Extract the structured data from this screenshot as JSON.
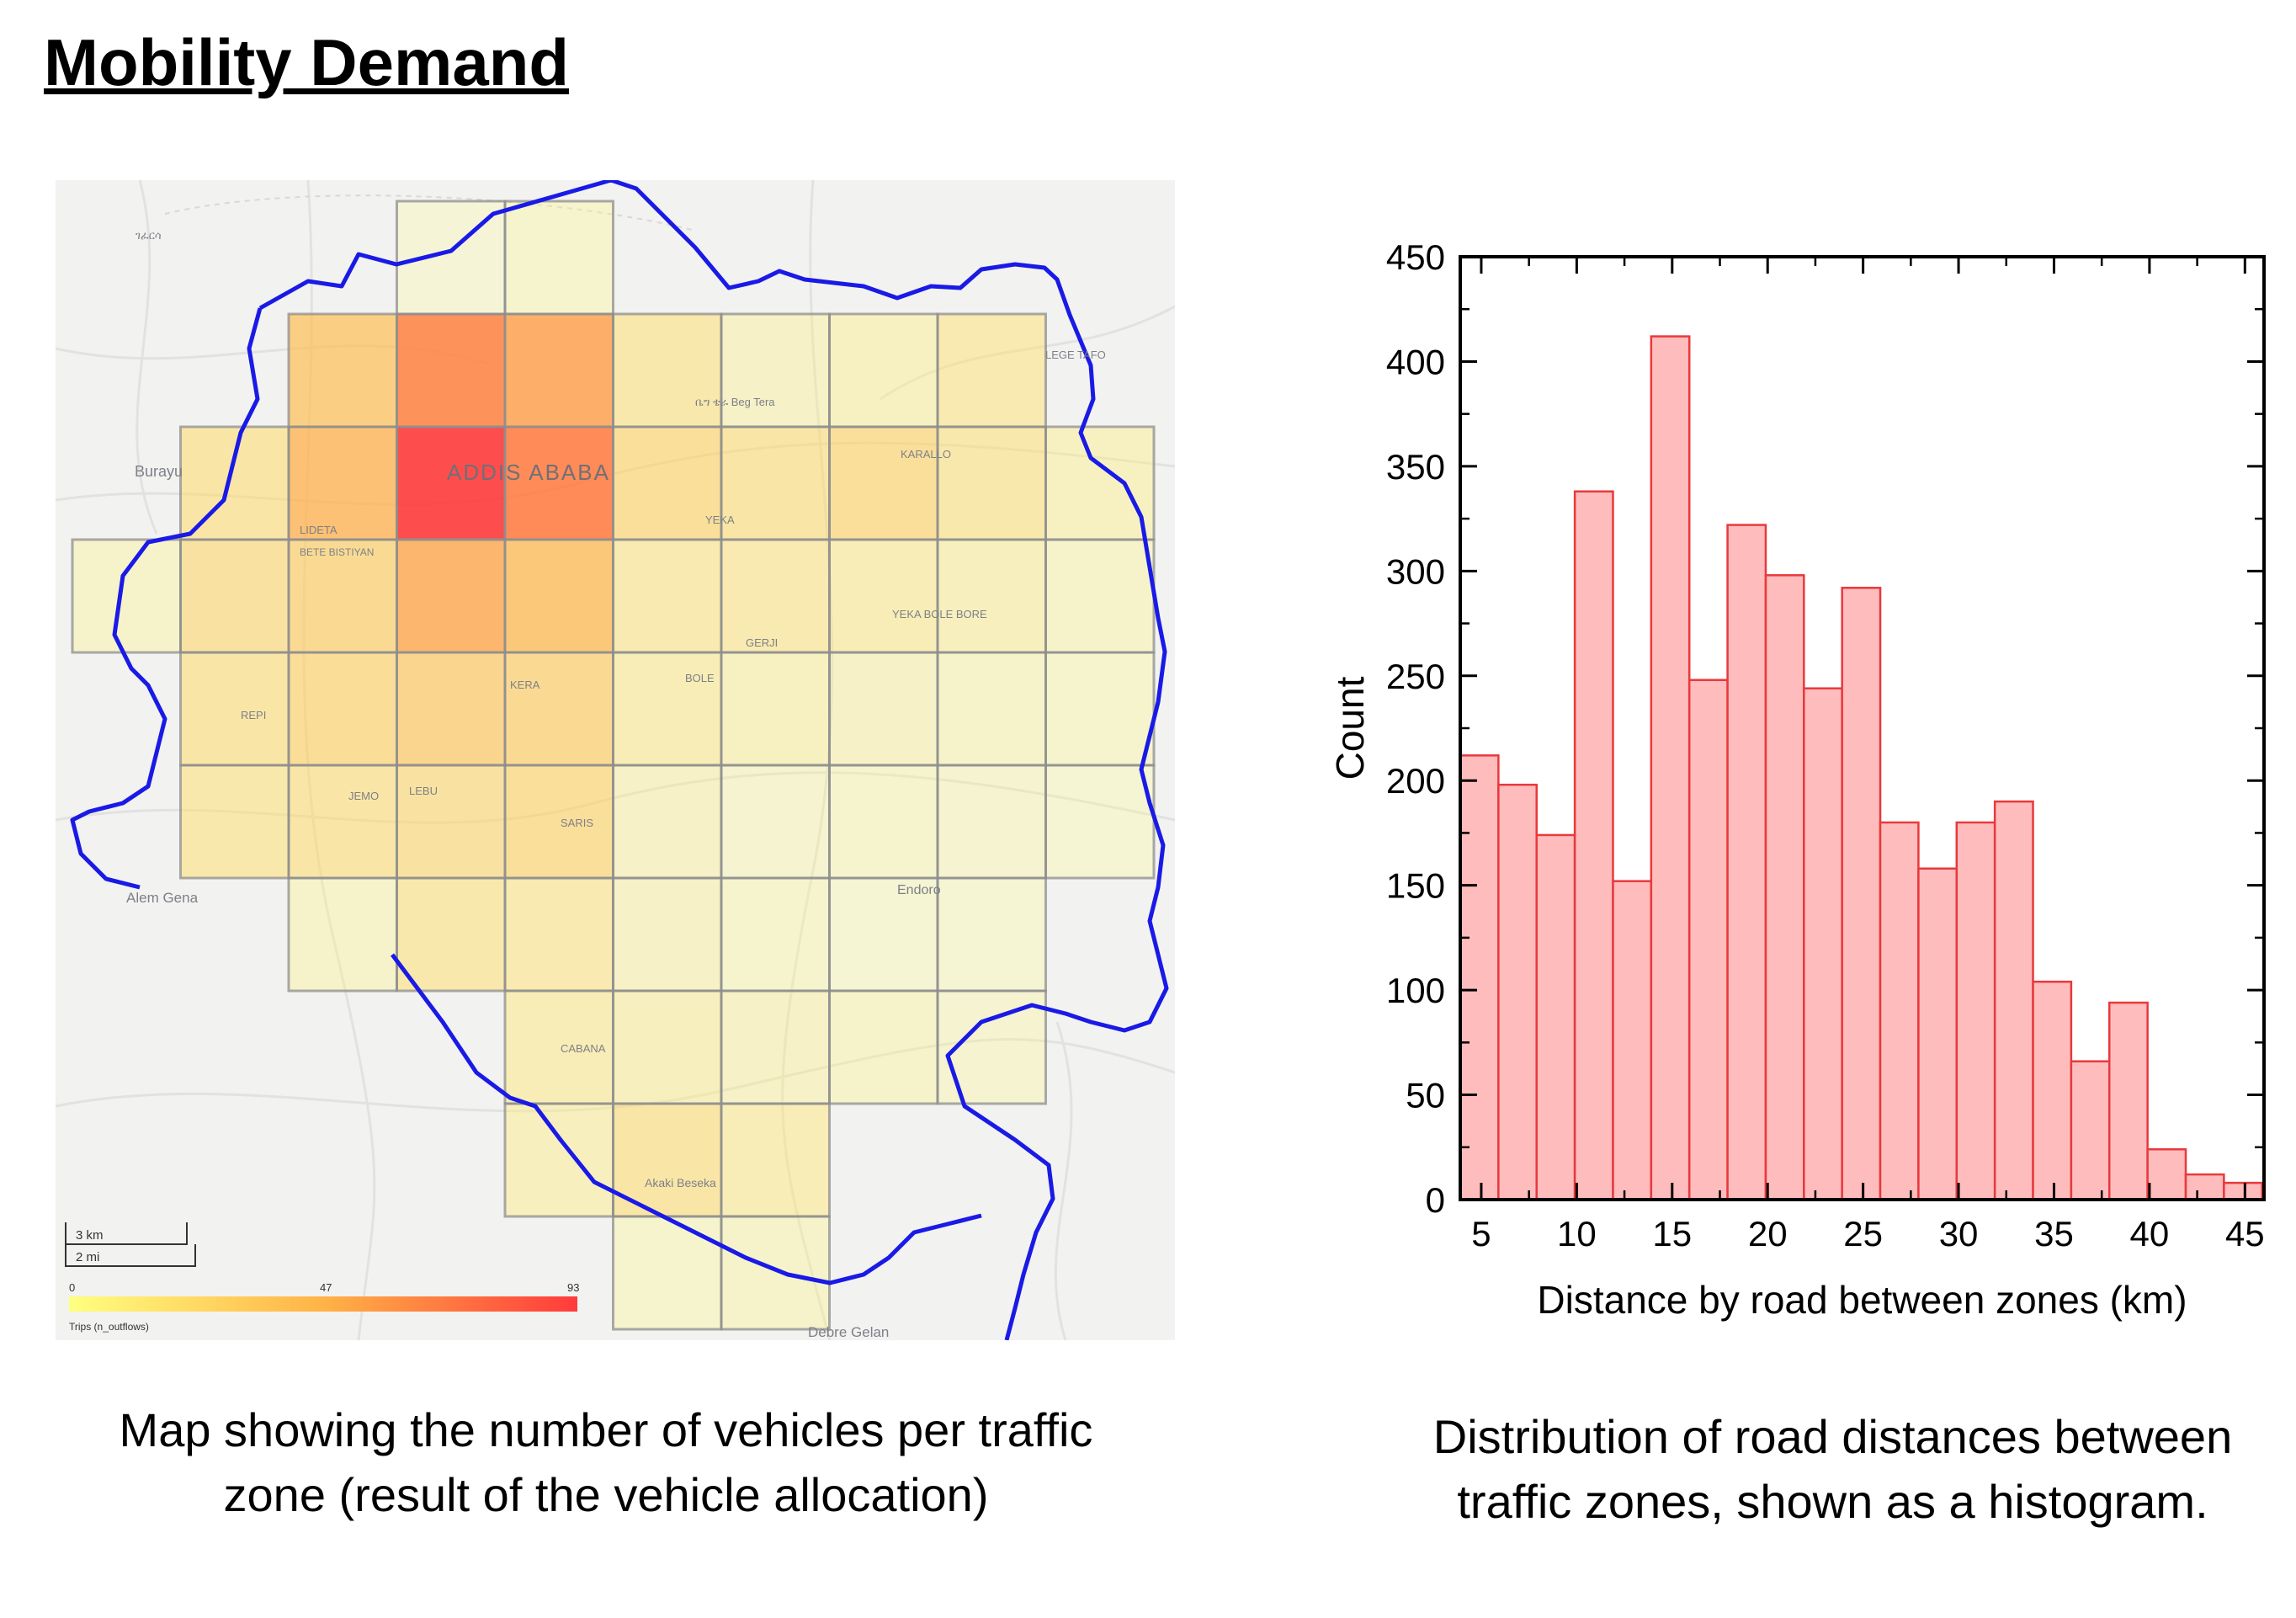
{
  "title": "Mobility Demand",
  "colors": {
    "bar_fill": "#ffbcbc",
    "bar_stroke": "#e8393c",
    "boundary_blue": "#1a1ae6",
    "boundary_light": "#a9a9f2",
    "zone_border": "#8e8e8e",
    "heat_low": "#ffff80",
    "heat_mid": "#ffb347",
    "heat_high": "#ff3b3b"
  },
  "map": {
    "place_labels": [
      "Burayu",
      "ADDIS ABABA",
      "Alem Gena",
      "Endoro",
      "Debre Gelan",
      "ገፈርሳ",
      "LEGE TAFO",
      "ቤግ ቴራ Beg Tera",
      "KARALLO",
      "LIDETA",
      "BETE BISTIYAN",
      "YEKA",
      "GERJI",
      "YEKA BOLE BORE",
      "BOLE",
      "REPI",
      "JEMO",
      "LEBU",
      "SARIS",
      "CABANA",
      "Akaki Beseka",
      "KERA"
    ],
    "scale_km": "3 km",
    "scale_mi": "2 mi",
    "legend_min": "0",
    "legend_mid": "47",
    "legend_max": "93",
    "legend_title": "Trips (n_outflows)",
    "value_range": [
      0,
      93
    ],
    "zones": [
      {
        "row": 0,
        "cols": [
          3,
          4
        ],
        "values": [
          2,
          5
        ]
      },
      {
        "row": 1,
        "cols": [
          2,
          3,
          4,
          5,
          6,
          7,
          8
        ],
        "values": [
          40,
          65,
          55,
          20,
          8,
          10,
          18
        ]
      },
      {
        "row": 2,
        "cols": [
          1,
          2,
          3,
          4,
          5,
          6,
          7,
          8,
          9
        ],
        "values": [
          22,
          48,
          93,
          68,
          28,
          22,
          28,
          20,
          10
        ]
      },
      {
        "row": 3,
        "cols": [
          0,
          1,
          2,
          3,
          4,
          5,
          6,
          7,
          8,
          9
        ],
        "values": [
          6,
          25,
          32,
          52,
          44,
          18,
          18,
          15,
          12,
          6
        ]
      },
      {
        "row": 4,
        "cols": [
          1,
          2,
          3,
          4,
          5,
          6,
          7,
          8,
          9
        ],
        "values": [
          22,
          30,
          35,
          32,
          15,
          10,
          8,
          6,
          5
        ]
      },
      {
        "row": 5,
        "cols": [
          1,
          2,
          3,
          4,
          5,
          6,
          7,
          8,
          9
        ],
        "values": [
          20,
          22,
          25,
          28,
          8,
          4,
          5,
          4,
          3
        ]
      },
      {
        "row": 6,
        "cols": [
          2,
          3,
          4,
          5,
          6,
          7,
          8
        ],
        "values": [
          6,
          20,
          18,
          8,
          5,
          3,
          3
        ]
      },
      {
        "row": 7,
        "cols": [
          4,
          5,
          6,
          7,
          8
        ],
        "values": [
          15,
          12,
          8,
          6,
          4
        ]
      },
      {
        "row": 8,
        "cols": [
          4,
          5,
          6
        ],
        "values": [
          12,
          22,
          15
        ]
      },
      {
        "row": 9,
        "cols": [
          5,
          6
        ],
        "values": [
          5,
          6
        ]
      }
    ]
  },
  "chart_data": {
    "type": "bar",
    "xlabel": "Distance by road between zones (km)",
    "ylabel": "Count",
    "xlim": [
      3.9,
      46.0
    ],
    "ylim": [
      0,
      450
    ],
    "xticks": [
      5,
      10,
      15,
      20,
      25,
      30,
      35,
      40,
      45
    ],
    "yticks": [
      0,
      50,
      100,
      150,
      200,
      250,
      300,
      350,
      400,
      450
    ],
    "bin_start": 3.9,
    "bin_width": 2.0,
    "values": [
      212,
      198,
      174,
      338,
      152,
      412,
      248,
      322,
      298,
      244,
      292,
      180,
      158,
      180,
      190,
      104,
      66,
      94,
      24,
      12,
      8
    ]
  },
  "captions": {
    "map": "Map showing the number of vehicles per traffic zone (result of the vehicle allocation)",
    "histogram": "Distribution of road distances between traffic zones, shown as a histogram."
  }
}
